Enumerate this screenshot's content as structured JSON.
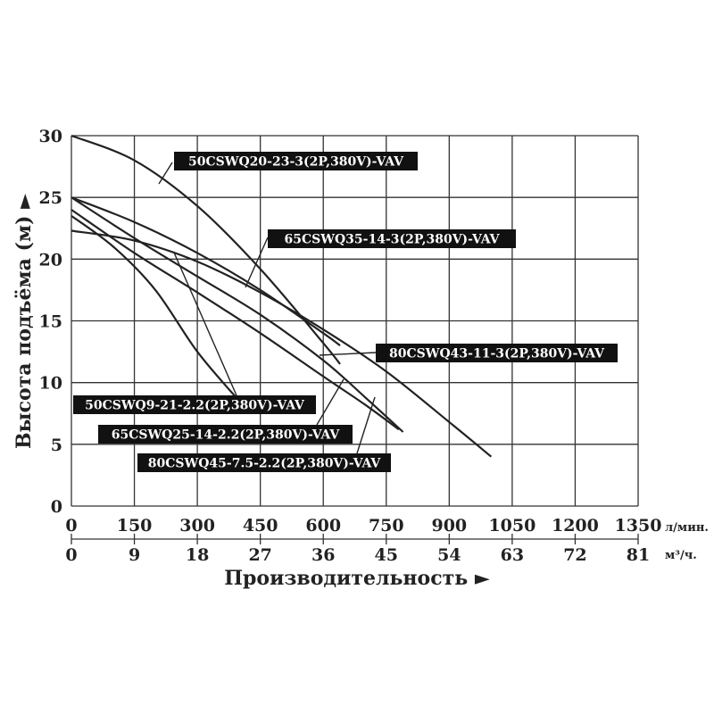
{
  "chart_data": {
    "type": "line",
    "title": "",
    "ylabel": "Высота подъёма (м) ►",
    "xlabel": "Производительность ►",
    "ylim": [
      0,
      30
    ],
    "xlim": [
      0,
      1350
    ],
    "y_ticks": [
      "0",
      "5",
      "10",
      "15",
      "20",
      "25",
      "30"
    ],
    "x_ticks_primary": [
      "0",
      "150",
      "300",
      "450",
      "600",
      "750",
      "900",
      "1050",
      "1200",
      "1350"
    ],
    "x_unit_primary": "л/мин.",
    "x_ticks_secondary": [
      "0",
      "9",
      "18",
      "27",
      "36",
      "45",
      "54",
      "63",
      "72",
      "81"
    ],
    "x_unit_secondary": "м³/ч.",
    "grid": true,
    "series": [
      {
        "name": "50CSWQ20-23-3(2P,380V)-VAV",
        "x": [
          0,
          150,
          300,
          450,
          600,
          640
        ],
        "y": [
          30,
          28,
          24.3,
          19.2,
          13.2,
          11.5
        ]
      },
      {
        "name": "65CSWQ35-14-3(2P,380V)-VAV",
        "x": [
          0,
          150,
          300,
          450,
          600,
          640
        ],
        "y": [
          25,
          23,
          20.5,
          17.5,
          14,
          13
        ]
      },
      {
        "name": "80CSWQ43-11-3(2P,380V)-VAV",
        "x": [
          0,
          150,
          300,
          450,
          600,
          750,
          900,
          1000
        ],
        "y": [
          22.3,
          21.5,
          19.8,
          17.3,
          14.3,
          10.9,
          6.8,
          4
        ]
      },
      {
        "name": "50CSWQ9-21-2.2(2P,380V)-VAV",
        "x": [
          0,
          100,
          200,
          300,
          400
        ],
        "y": [
          23.5,
          21,
          17.5,
          12.5,
          8.5
        ]
      },
      {
        "name": "65CSWQ25-14-2.2(2P,380V)-VAV",
        "x": [
          0,
          150,
          300,
          450,
          600,
          700,
          790
        ],
        "y": [
          25,
          21.7,
          18.6,
          15.5,
          11.8,
          8.8,
          6
        ]
      },
      {
        "name": "80CSWQ45-7.5-2.2(2P,380V)-VAV",
        "x": [
          0,
          150,
          300,
          450,
          600,
          700,
          780
        ],
        "y": [
          24,
          20.5,
          17.3,
          14,
          10.5,
          8.2,
          6.2
        ]
      }
    ],
    "annotations": [
      {
        "text": "50CSWQ20-23-3(2P,380V)-VAV",
        "series": 0
      },
      {
        "text": "65CSWQ35-14-3(2P,380V)-VAV",
        "series": 1
      },
      {
        "text": "80CSWQ43-11-3(2P,380V)-VAV",
        "series": 2
      },
      {
        "text": "50CSWQ9-21-2.2(2P,380V)-VAV",
        "series": 3
      },
      {
        "text": "65CSWQ25-14-2.2(2P,380V)-VAV",
        "series": 4
      },
      {
        "text": "80CSWQ45-7.5-2.2(2P,380V)-VAV",
        "series": 5
      }
    ]
  }
}
